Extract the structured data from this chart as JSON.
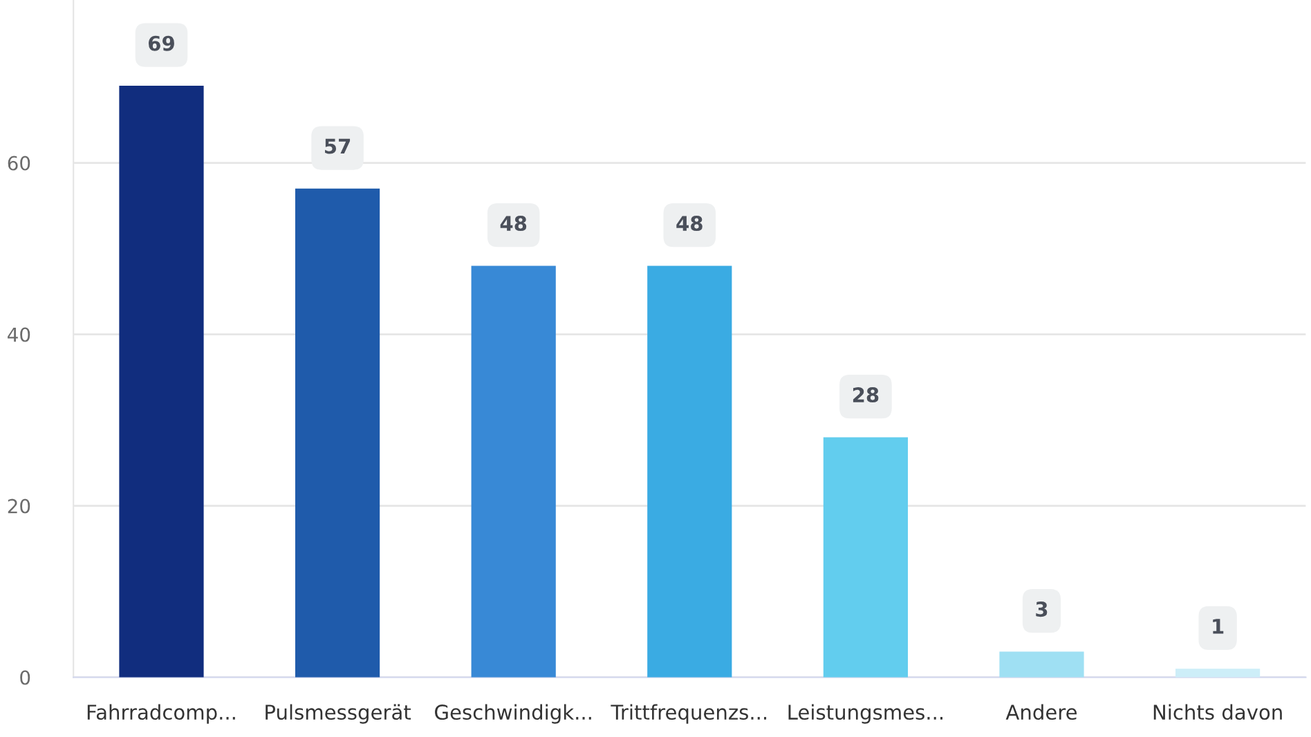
{
  "chart_data": {
    "type": "bar",
    "categories": [
      "Fahrradcomp...",
      "Pulsmessgerät",
      "Geschwindigk...",
      "Trittfrequenzs...",
      "Leistungsmes...",
      "Andere",
      "Nichts davon"
    ],
    "values": [
      69,
      57,
      48,
      48,
      28,
      3,
      1
    ],
    "colors": [
      "#112d7e",
      "#1f5bab",
      "#3889d6",
      "#3aabe3",
      "#62cdee",
      "#9fe0f3",
      "#cdeef8"
    ],
    "ylim": [
      0,
      79
    ],
    "yticks": [
      0,
      20,
      40,
      60
    ],
    "grid": "y",
    "data_labels": true,
    "legend": false
  }
}
